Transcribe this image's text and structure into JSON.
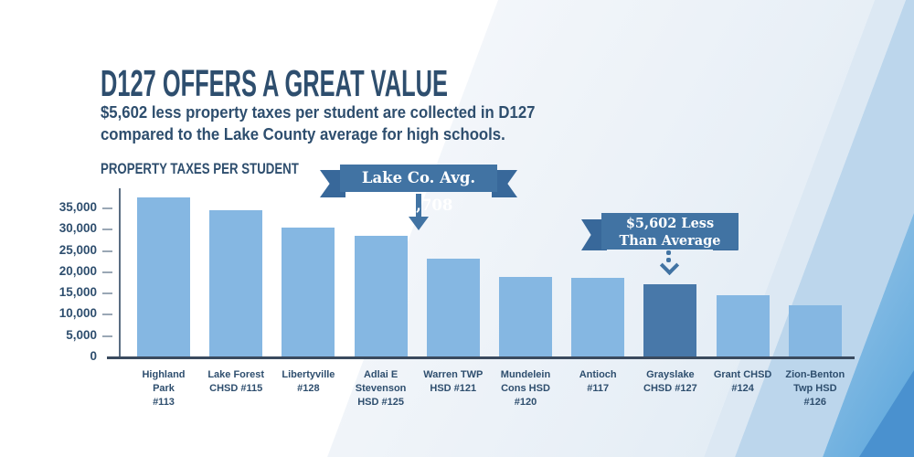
{
  "header": {
    "title": "D127 OFFERS A GREAT VALUE",
    "subtitle": "$5,602 less property taxes per student are collected in D127\ncompared to the Lake County average for high schools.",
    "chart_label": "PROPERTY TAXES PER STUDENT"
  },
  "annotations": {
    "avg_ribbon": "Lake Co. Avg. $22,708",
    "less_ribbon": "$5,602 Less\nThan Average"
  },
  "colors": {
    "ink": "#2e4e6e",
    "ribbon": "#4173a3",
    "ribbon_dark": "#38689a",
    "bar": "#85b7e2",
    "bar_highlight": "#4878a9",
    "axis": "#3a4a5e",
    "tick_dash": "#9aa7b5",
    "band_light": "#dce8f3",
    "band_mid": "#bcd6ec",
    "band_bright": "#5ba6dc",
    "band_corner": "#4a91cf"
  },
  "chart_data": {
    "type": "bar",
    "title": "PROPERTY TAXES PER STUDENT",
    "xlabel": "",
    "ylabel": "Property taxes per student ($)",
    "ylim": [
      0,
      38000
    ],
    "grid": false,
    "legend": false,
    "yticks": [
      0,
      5000,
      10000,
      15000,
      20000,
      25000,
      30000,
      35000
    ],
    "categories": [
      "Highland\nPark\n#113",
      "Lake Forest\nCHSD #115",
      "Libertyville\n#128",
      "Adlai E\nStevenson\nHSD #125",
      "Warren TWP\nHSD #121",
      "Mundelein\nCons HSD\n#120",
      "Antioch\n#117",
      "Grayslake\nCHSD #127",
      "Grant CHSD\n#124",
      "Zion-Benton\nTwp HSD\n#126"
    ],
    "values": [
      37500,
      34500,
      30400,
      28600,
      23200,
      18800,
      18600,
      17106,
      14700,
      12200
    ],
    "highlight_index": 7,
    "highlight_category": "Grayslake CHSD #127",
    "annotations": [
      {
        "text": "Lake Co. Avg. $22,708",
        "value": 22708
      },
      {
        "text": "$5,602 Less Than Average",
        "applies_to": "Grayslake CHSD #127",
        "difference": 5602
      }
    ]
  }
}
